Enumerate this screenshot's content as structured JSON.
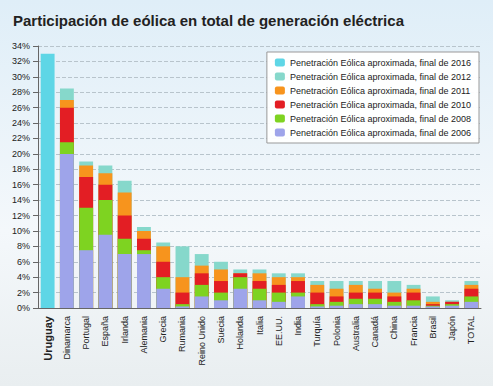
{
  "chart_data": {
    "type": "bar",
    "title": "Participación de eólica en total de generación eléctrica",
    "categories": [
      "Uruguay",
      "Dinamarca",
      "Portugal",
      "España",
      "Irlanda",
      "Alemania",
      "Grecia",
      "Rumania",
      "Reino Unido",
      "Suecia",
      "Holanda",
      "Italia",
      "EE.UU.",
      "India",
      "Turquía",
      "Polonia",
      "Australia",
      "Canadá",
      "China",
      "Francia",
      "Brasil",
      "Japón",
      "TOTAL"
    ],
    "series": [
      {
        "name": "Penetración Eólica aproximada, final de 2016",
        "color": "#5ed6e6",
        "values": [
          33,
          null,
          null,
          null,
          null,
          null,
          null,
          null,
          null,
          null,
          null,
          null,
          null,
          null,
          null,
          null,
          null,
          null,
          null,
          null,
          null,
          null,
          null
        ]
      },
      {
        "name": "Penetración Eólica aproximada, final de 2012",
        "color": "#86d8cb",
        "values": [
          null,
          28.5,
          19,
          18.5,
          16.5,
          10.5,
          8.5,
          8,
          7,
          6,
          5,
          5,
          4.5,
          4.5,
          3.5,
          3.5,
          3.5,
          3.5,
          3.5,
          3,
          1.5,
          1,
          3.5
        ]
      },
      {
        "name": "Penetración Eólica aproximada, final de 2011",
        "color": "#f7941d",
        "values": [
          null,
          27,
          18.5,
          17.5,
          15,
          10,
          8,
          4,
          5.5,
          5,
          4.5,
          4.5,
          4,
          4,
          3,
          2.5,
          3,
          2.5,
          2,
          2.5,
          0.8,
          0.8,
          3
        ]
      },
      {
        "name": "Penetración Eólica aproximada, final de 2010",
        "color": "#e31e24",
        "values": [
          null,
          26,
          17,
          16,
          12,
          9,
          6,
          2,
          4.5,
          3.5,
          4.5,
          3.5,
          3,
          3.5,
          2,
          1.5,
          2,
          2,
          1.5,
          2,
          0.5,
          0.8,
          2.5
        ]
      },
      {
        "name": "Penetración Eólica aproximada, final de 2008",
        "color": "#7ed321",
        "values": [
          null,
          21.5,
          13,
          14,
          9,
          7.5,
          4,
          0.5,
          3,
          2,
          4,
          2.5,
          2,
          2,
          0.5,
          0.8,
          1.2,
          1.2,
          0.8,
          1,
          0.3,
          0.5,
          1.5
        ]
      },
      {
        "name": "Penetración Eólica aproximada, final de 2006",
        "color": "#9ea4ea",
        "values": [
          null,
          20,
          7.5,
          9.5,
          7,
          7,
          2.5,
          0.2,
          1.5,
          1,
          2.5,
          1,
          0.8,
          1.5,
          0.2,
          0.3,
          0.5,
          0.5,
          0.3,
          0.3,
          0.2,
          0.3,
          0.8
        ]
      }
    ],
    "ylim": [
      0,
      34
    ],
    "yticks": [
      {
        "value": 0,
        "label": "0%"
      },
      {
        "value": 2,
        "label": "2%"
      },
      {
        "value": 4,
        "label": "4%"
      },
      {
        "value": 6,
        "label": "6%"
      },
      {
        "value": 8,
        "label": "8%"
      },
      {
        "value": 10,
        "label": "10%"
      },
      {
        "value": 12,
        "label": "12%"
      },
      {
        "value": 14,
        "label": "14%"
      },
      {
        "value": 16,
        "label": "16%"
      },
      {
        "value": 18,
        "label": "18%"
      },
      {
        "value": 20,
        "label": "20%"
      },
      {
        "value": 22,
        "label": "22%"
      },
      {
        "value": 24,
        "label": "24%"
      },
      {
        "value": 26,
        "label": "26%"
      },
      {
        "value": 28,
        "label": "28%"
      },
      {
        "value": 30,
        "label": "30%"
      },
      {
        "value": 32,
        "label": "32%"
      },
      {
        "value": 34,
        "label": "34%"
      }
    ],
    "grid": true,
    "legend": "upper right"
  }
}
